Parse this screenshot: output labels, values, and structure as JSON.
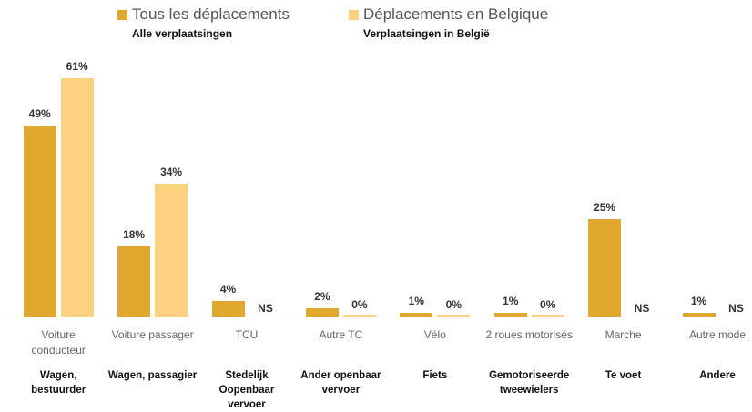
{
  "chart_data": {
    "type": "bar",
    "categories": [
      "Voiture conducteur",
      "Voiture passager",
      "TCU",
      "Autre TC",
      "Vélo",
      "2 roues motorisés",
      "Marche",
      "Autre mode"
    ],
    "categories_nl": [
      "Wagen, bestuurder",
      "Wagen, passagier",
      "Stedelijk Oopenbaar vervoer",
      "Ander openbaar vervoer",
      "Fiets",
      "Gemotoriseerde tweewielers",
      "Te voet",
      "Andere"
    ],
    "series": [
      {
        "name": "Tous les déplacements",
        "name_nl": "Alle verplaatsingen",
        "color": "#e0a82e",
        "values": [
          49,
          18,
          4,
          2,
          1,
          1,
          25,
          1
        ],
        "value_labels": [
          "49%",
          "18%",
          "4%",
          "2%",
          "1%",
          "1%",
          "25%",
          "1%"
        ]
      },
      {
        "name": "Déplacements en Belgique",
        "name_nl": "Verplaatsingen in België",
        "color": "#fdd17f",
        "values": [
          61,
          34,
          null,
          0,
          0,
          0,
          null,
          null
        ],
        "value_labels": [
          "61%",
          "34%",
          "NS",
          "0%",
          "0%",
          "0%",
          "NS",
          "NS"
        ]
      }
    ]
  }
}
